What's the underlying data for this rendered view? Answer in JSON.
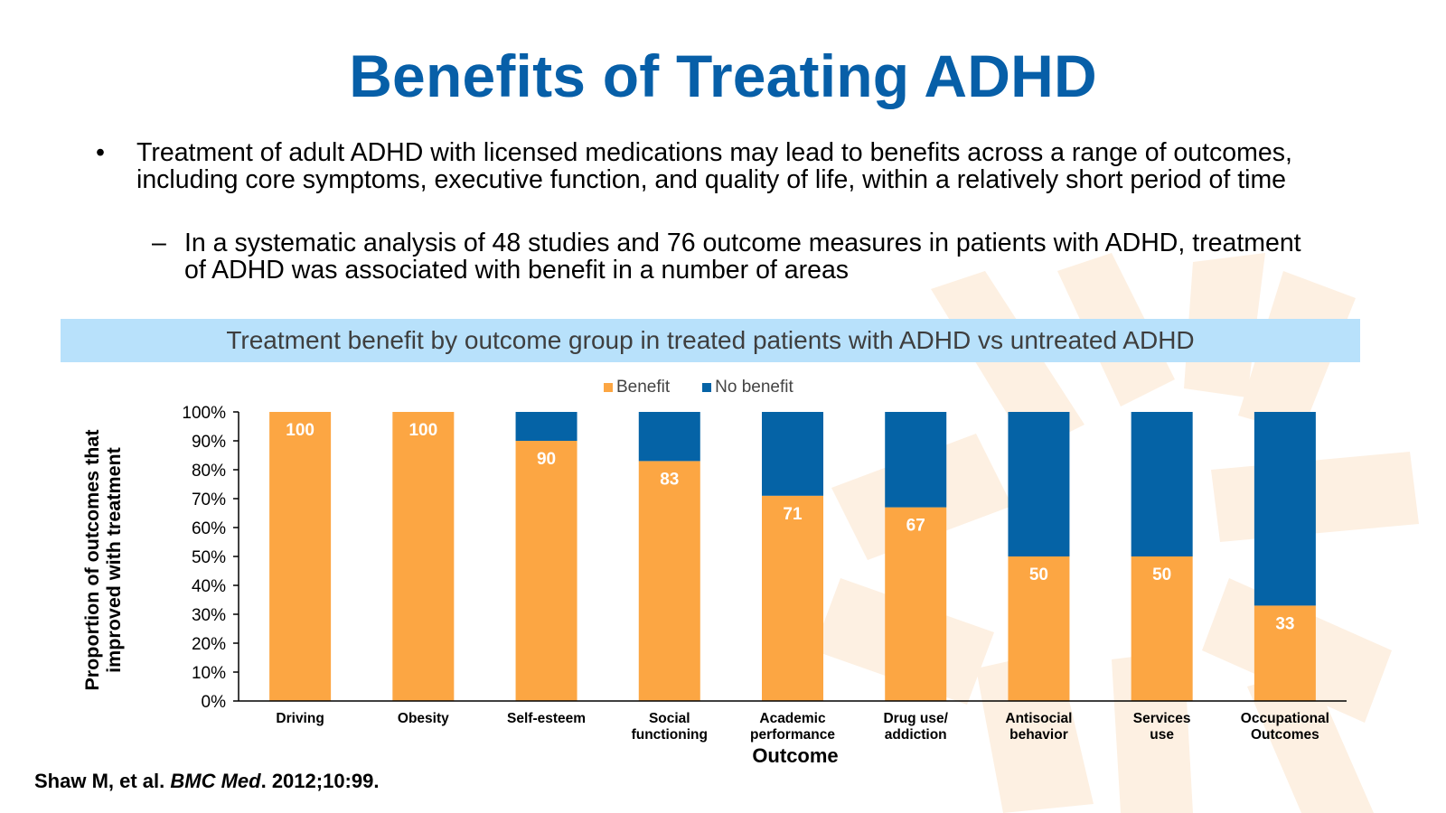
{
  "slide": {
    "title": "Benefits of Treating ADHD",
    "bullet_marker": "•",
    "bullet": "Treatment of adult ADHD with licensed medications may lead to benefits across a range of outcomes, including core symptoms, executive function, and quality of life, within a relatively short period of time",
    "sub_marker": "–",
    "sub_bullet": "In a systematic analysis of 48 studies and 76 outcome measures in patients with ADHD, treatment of ADHD was associated with benefit in a number of areas",
    "banner": "Treatment benefit by outcome group in treated patients with ADHD vs untreated ADHD",
    "citation": {
      "authors": "Shaw M, et al. ",
      "journal": "BMC Med",
      "rest": ". 2012;10:99."
    }
  },
  "colors": {
    "benefit": "#fca643",
    "no_benefit": "#0563a6",
    "title": "#075fa8",
    "banner_bg": "#b8e1fb",
    "watermark": "#fdf0e2"
  },
  "chart_data": {
    "type": "bar",
    "stacked": true,
    "categories": [
      [
        "Driving"
      ],
      [
        "Obesity"
      ],
      [
        "Self-esteem"
      ],
      [
        "Social",
        "functioning"
      ],
      [
        "Academic",
        "performance"
      ],
      [
        "Drug use/",
        "addiction"
      ],
      [
        "Antisocial",
        "behavior"
      ],
      [
        "Services",
        "use"
      ],
      [
        "Occupational",
        "Outcomes"
      ]
    ],
    "series": [
      {
        "name": "Benefit",
        "values": [
          100,
          100,
          90,
          83,
          71,
          67,
          50,
          50,
          33
        ]
      },
      {
        "name": "No benefit",
        "values": [
          0,
          0,
          10,
          17,
          29,
          33,
          50,
          50,
          67
        ]
      }
    ],
    "data_labels": [
      "100",
      "100",
      "90",
      "83",
      "71",
      "67",
      "50",
      "50",
      "33"
    ],
    "yticks": [
      "0%",
      "10%",
      "20%",
      "30%",
      "40%",
      "50%",
      "60%",
      "70%",
      "80%",
      "90%",
      "100%"
    ],
    "ylim": [
      0,
      100
    ],
    "ylabel": "Proportion of outcomes that improved with treatment",
    "xlabel": "Outcome",
    "legend": [
      "Benefit",
      "No benefit"
    ]
  }
}
